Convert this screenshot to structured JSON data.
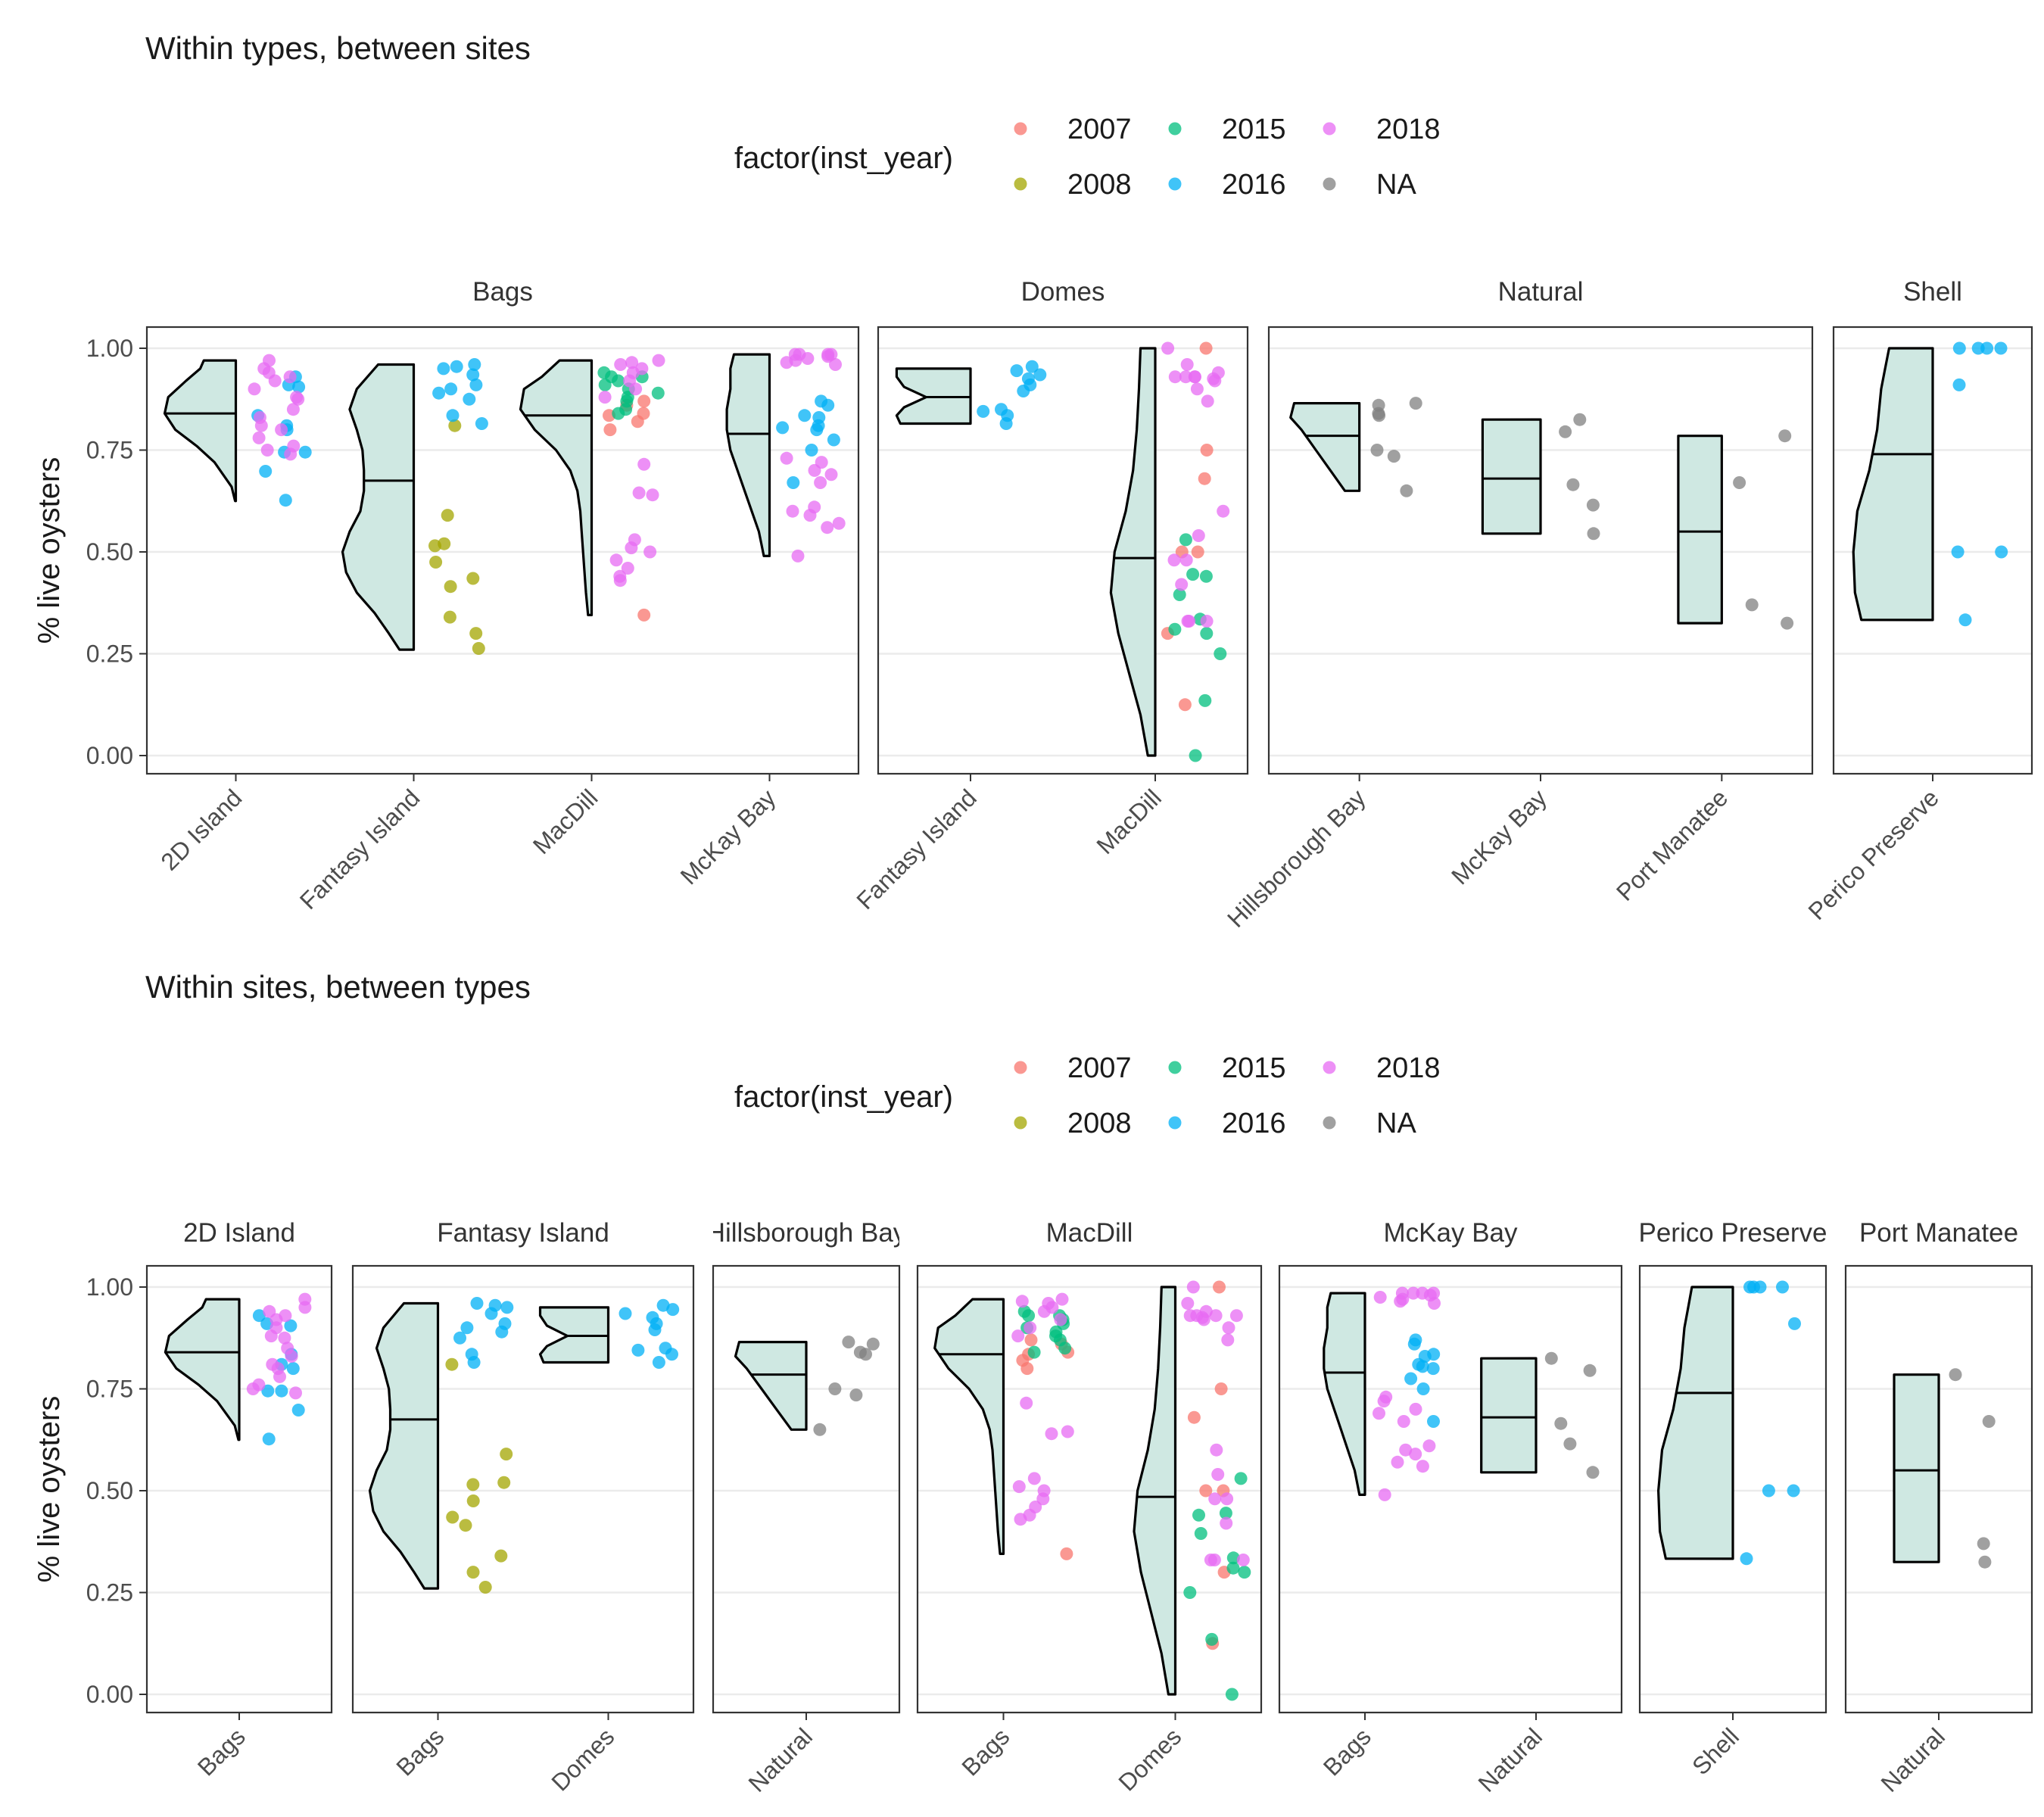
{
  "colors": {
    "2007": "#F8766D",
    "2008": "#A3A500",
    "2015": "#00BF7D",
    "2016": "#00B0F6",
    "2018": "#E76BF3",
    "NA": "#808080",
    "violin_fill": "#cfe8e2"
  },
  "chart_data": [
    {
      "type": "violin",
      "title": "Within types, between sites",
      "ylabel": "% live oysters",
      "ylim": [
        0,
        1
      ],
      "yticks": [
        "0.00",
        "0.25",
        "0.50",
        "0.75",
        "1.00"
      ],
      "legend": {
        "title": "factor(inst_year)",
        "placement": "top",
        "entries": [
          "2007",
          "2015",
          "2018",
          "2008",
          "2016",
          "NA"
        ]
      },
      "facet_by": "type",
      "facets": [
        {
          "label": "Bags",
          "groups": [
            {
              "label": "2D Island",
              "min": 0.625,
              "max": 0.97,
              "median": 0.84,
              "shape": [
                [
                  0.625,
                  0.01
                ],
                [
                  0.66,
                  0.06
                ],
                [
                  0.72,
                  0.3
                ],
                [
                  0.76,
                  0.55
                ],
                [
                  0.8,
                  0.85
                ],
                [
                  0.84,
                  1.0
                ],
                [
                  0.88,
                  0.95
                ],
                [
                  0.92,
                  0.7
                ],
                [
                  0.95,
                  0.5
                ],
                [
                  0.97,
                  0.45
                ]
              ],
              "points": {
                "2016": [
                  0.627,
                  0.698,
                  0.745,
                  0.745,
                  0.8,
                  0.81,
                  0.835,
                  0.905,
                  0.91,
                  0.93
                ],
                "2018": [
                  0.74,
                  0.75,
                  0.76,
                  0.78,
                  0.8,
                  0.81,
                  0.83,
                  0.85,
                  0.875,
                  0.88,
                  0.9,
                  0.92,
                  0.93,
                  0.94,
                  0.95,
                  0.97
                ]
              }
            },
            {
              "label": "Fantasy Island",
              "min": 0.26,
              "max": 0.96,
              "median": 0.675,
              "shape": [
                [
                  0.26,
                  0.2
                ],
                [
                  0.3,
                  0.35
                ],
                [
                  0.35,
                  0.55
                ],
                [
                  0.4,
                  0.8
                ],
                [
                  0.45,
                  0.95
                ],
                [
                  0.5,
                  1.0
                ],
                [
                  0.55,
                  0.9
                ],
                [
                  0.6,
                  0.75
                ],
                [
                  0.65,
                  0.7
                ],
                [
                  0.7,
                  0.7
                ],
                [
                  0.75,
                  0.72
                ],
                [
                  0.8,
                  0.8
                ],
                [
                  0.85,
                  0.9
                ],
                [
                  0.9,
                  0.8
                ],
                [
                  0.96,
                  0.5
                ]
              ],
              "points": {
                "2008": [
                  0.263,
                  0.3,
                  0.34,
                  0.415,
                  0.435,
                  0.475,
                  0.515,
                  0.52,
                  0.59,
                  0.81
                ],
                "2016": [
                  0.815,
                  0.835,
                  0.875,
                  0.89,
                  0.9,
                  0.91,
                  0.935,
                  0.95,
                  0.955,
                  0.96
                ]
              }
            },
            {
              "label": "MacDill",
              "min": 0.345,
              "max": 0.97,
              "median": 0.835,
              "shape": [
                [
                  0.345,
                  0.05
                ],
                [
                  0.4,
                  0.08
                ],
                [
                  0.45,
                  0.1
                ],
                [
                  0.5,
                  0.12
                ],
                [
                  0.55,
                  0.14
                ],
                [
                  0.6,
                  0.16
                ],
                [
                  0.65,
                  0.2
                ],
                [
                  0.7,
                  0.3
                ],
                [
                  0.75,
                  0.5
                ],
                [
                  0.8,
                  0.8
                ],
                [
                  0.85,
                  1.0
                ],
                [
                  0.9,
                  0.95
                ],
                [
                  0.93,
                  0.7
                ],
                [
                  0.97,
                  0.45
                ]
              ],
              "points": {
                "2007": [
                  0.345,
                  0.8,
                  0.82,
                  0.835,
                  0.84,
                  0.86,
                  0.87
                ],
                "2015": [
                  0.84,
                  0.85,
                  0.87,
                  0.88,
                  0.89,
                  0.9,
                  0.91,
                  0.92,
                  0.93,
                  0.93,
                  0.94
                ],
                "2018": [
                  0.43,
                  0.44,
                  0.46,
                  0.48,
                  0.5,
                  0.51,
                  0.53,
                  0.64,
                  0.645,
                  0.715,
                  0.88,
                  0.9,
                  0.92,
                  0.94,
                  0.95,
                  0.96,
                  0.965,
                  0.97
                ]
              }
            },
            {
              "label": "McKay Bay",
              "min": 0.49,
              "max": 0.985,
              "median": 0.79,
              "shape": [
                [
                  0.49,
                  0.08
                ],
                [
                  0.55,
                  0.15
                ],
                [
                  0.6,
                  0.25
                ],
                [
                  0.65,
                  0.35
                ],
                [
                  0.7,
                  0.45
                ],
                [
                  0.75,
                  0.55
                ],
                [
                  0.8,
                  0.6
                ],
                [
                  0.85,
                  0.6
                ],
                [
                  0.9,
                  0.55
                ],
                [
                  0.95,
                  0.55
                ],
                [
                  0.985,
                  0.5
                ]
              ],
              "points": {
                "2016": [
                  0.67,
                  0.75,
                  0.775,
                  0.8,
                  0.805,
                  0.81,
                  0.83,
                  0.835,
                  0.86,
                  0.87
                ],
                "2018": [
                  0.49,
                  0.56,
                  0.57,
                  0.59,
                  0.6,
                  0.61,
                  0.67,
                  0.69,
                  0.7,
                  0.72,
                  0.73,
                  0.96,
                  0.965,
                  0.97,
                  0.975,
                  0.98,
                  0.985,
                  0.985,
                  0.985,
                  0.985
                ]
              }
            }
          ]
        },
        {
          "label": "Domes",
          "groups": [
            {
              "label": "Fantasy Island",
              "min": 0.815,
              "max": 0.95,
              "median": 0.88,
              "shape": [
                [
                  0.815,
                  0.95
                ],
                [
                  0.835,
                  1.0
                ],
                [
                  0.855,
                  0.9
                ],
                [
                  0.88,
                  0.6
                ],
                [
                  0.905,
                  0.9
                ],
                [
                  0.93,
                  1.0
                ],
                [
                  0.95,
                  1.0
                ]
              ],
              "points": {
                "2016": [
                  0.815,
                  0.835,
                  0.845,
                  0.85,
                  0.895,
                  0.91,
                  0.925,
                  0.935,
                  0.945,
                  0.955
                ]
              }
            },
            {
              "label": "MacDill",
              "min": 0.0,
              "max": 1.0,
              "median": 0.485,
              "shape": [
                [
                  0.0,
                  0.1
                ],
                [
                  0.1,
                  0.2
                ],
                [
                  0.2,
                  0.35
                ],
                [
                  0.3,
                  0.5
                ],
                [
                  0.4,
                  0.6
                ],
                [
                  0.5,
                  0.55
                ],
                [
                  0.6,
                  0.4
                ],
                [
                  0.7,
                  0.3
                ],
                [
                  0.8,
                  0.25
                ],
                [
                  0.9,
                  0.22
                ],
                [
                  1.0,
                  0.2
                ]
              ],
              "points": {
                "2007": [
                  0.125,
                  0.3,
                  0.5,
                  0.5,
                  0.68,
                  0.75,
                  1.0
                ],
                "2015": [
                  0.0,
                  0.135,
                  0.25,
                  0.3,
                  0.31,
                  0.335,
                  0.395,
                  0.44,
                  0.445,
                  0.53
                ],
                "2018": [
                  0.33,
                  0.33,
                  0.33,
                  0.42,
                  0.48,
                  0.48,
                  0.54,
                  0.6,
                  0.87,
                  0.9,
                  0.92,
                  0.925,
                  0.93,
                  0.93,
                  0.93,
                  0.93,
                  0.94,
                  0.96,
                  1.0
                ]
              }
            }
          ]
        },
        {
          "label": "Natural",
          "groups": [
            {
              "label": "Hillsborough Bay",
              "min": 0.65,
              "max": 0.865,
              "median": 0.785,
              "shape": [
                [
                  0.65,
                  0.2
                ],
                [
                  0.7,
                  0.4
                ],
                [
                  0.75,
                  0.6
                ],
                [
                  0.8,
                  0.8
                ],
                [
                  0.83,
                  0.95
                ],
                [
                  0.865,
                  0.9
                ]
              ],
              "points": {
                "NA": [
                  0.65,
                  0.735,
                  0.75,
                  0.835,
                  0.84,
                  0.86,
                  0.865
                ]
              }
            },
            {
              "label": "McKay Bay",
              "min": 0.545,
              "max": 0.825,
              "median": 0.68,
              "shape": [
                [
                  0.545,
                  0.8
                ],
                [
                  0.825,
                  0.8
                ]
              ],
              "points": {
                "NA": [
                  0.545,
                  0.615,
                  0.665,
                  0.795,
                  0.825
                ]
              }
            },
            {
              "label": "Port Manatee",
              "min": 0.325,
              "max": 0.785,
              "median": 0.55,
              "shape": [
                [
                  0.325,
                  0.6
                ],
                [
                  0.785,
                  0.6
                ]
              ],
              "points": {
                "NA": [
                  0.325,
                  0.37,
                  0.67,
                  0.785
                ]
              }
            }
          ]
        },
        {
          "label": "Shell",
          "groups": [
            {
              "label": "Perico Preserve",
              "min": 0.333,
              "max": 1.0,
              "median": 0.74,
              "shape": [
                [
                  0.333,
                  0.9
                ],
                [
                  0.4,
                  0.98
                ],
                [
                  0.5,
                  1.0
                ],
                [
                  0.6,
                  0.95
                ],
                [
                  0.7,
                  0.8
                ],
                [
                  0.8,
                  0.7
                ],
                [
                  0.9,
                  0.65
                ],
                [
                  0.95,
                  0.6
                ],
                [
                  1.0,
                  0.55
                ]
              ],
              "points": {
                "2016": [
                  0.333,
                  0.5,
                  0.5,
                  0.91,
                  1.0,
                  1.0,
                  1.0,
                  1.0
                ]
              }
            }
          ]
        }
      ]
    },
    {
      "type": "violin",
      "title": "Within sites, between types",
      "ylabel": "% live oysters",
      "ylim": [
        0,
        1
      ],
      "yticks": [
        "0.00",
        "0.25",
        "0.50",
        "0.75",
        "1.00"
      ],
      "legend": {
        "title": "factor(inst_year)",
        "placement": "top",
        "entries": [
          "2007",
          "2015",
          "2018",
          "2008",
          "2016",
          "NA"
        ]
      },
      "facet_by": "site",
      "facets": [
        {
          "label": "2D Island",
          "groups": [
            {
              "label": "Bags",
              "ref": "Bags|2D Island"
            }
          ]
        },
        {
          "label": "Fantasy Island",
          "groups": [
            {
              "label": "Bags",
              "ref": "Bags|Fantasy Island"
            },
            {
              "label": "Domes",
              "ref": "Domes|Fantasy Island"
            }
          ]
        },
        {
          "label": "Hillsborough Bay",
          "groups": [
            {
              "label": "Natural",
              "ref": "Natural|Hillsborough Bay"
            }
          ]
        },
        {
          "label": "MacDill",
          "groups": [
            {
              "label": "Bags",
              "ref": "Bags|MacDill"
            },
            {
              "label": "Domes",
              "ref": "Domes|MacDill"
            }
          ]
        },
        {
          "label": "McKay Bay",
          "groups": [
            {
              "label": "Bags",
              "ref": "Bags|McKay Bay"
            },
            {
              "label": "Natural",
              "ref": "Natural|McKay Bay"
            }
          ]
        },
        {
          "label": "Perico Preserve",
          "groups": [
            {
              "label": "Shell",
              "ref": "Shell|Perico Preserve"
            }
          ]
        },
        {
          "label": "Port Manatee",
          "groups": [
            {
              "label": "Natural",
              "ref": "Natural|Port Manatee"
            }
          ]
        }
      ]
    }
  ]
}
